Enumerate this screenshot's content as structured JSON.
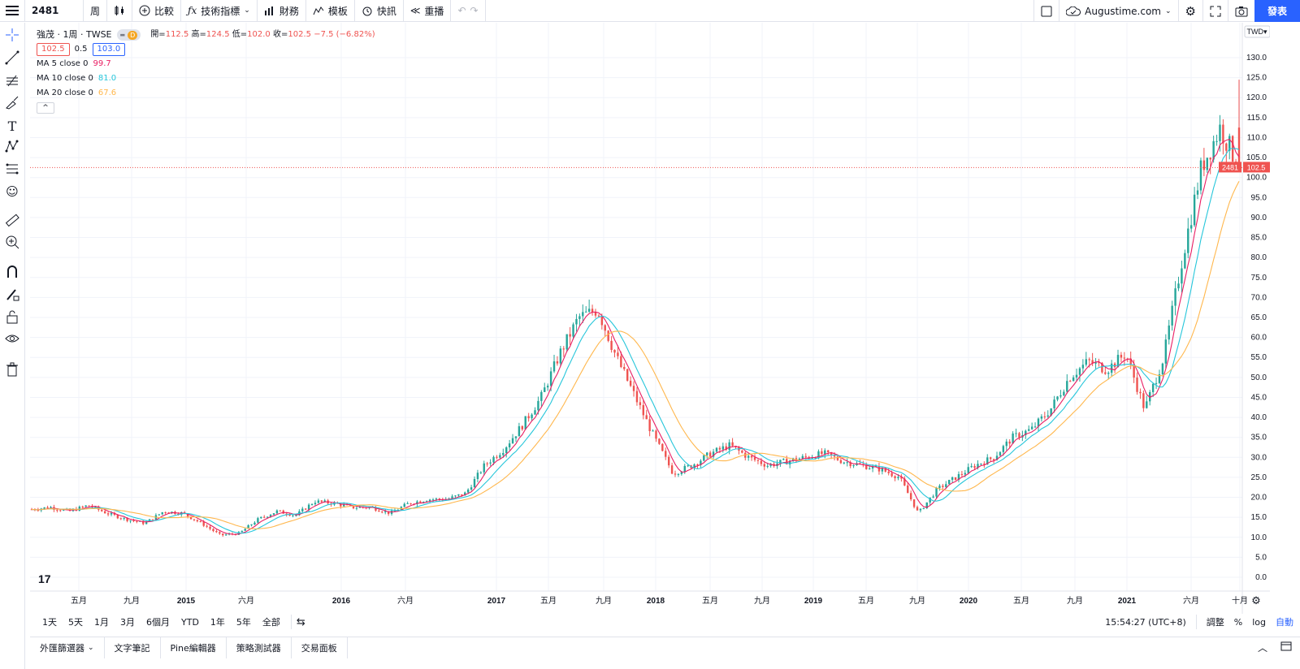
{
  "toolbar": {
    "symbol": "2481",
    "interval": "周",
    "compare_label": "比較",
    "indicators_label": "技術指標",
    "financials_label": "財務",
    "templates_label": "模板",
    "alert_label": "快訊",
    "replay_label": "重播",
    "account_label": "Augustime.com",
    "publish_label": "發表"
  },
  "legend": {
    "title": "強茂 · 1周 · TWSE",
    "badge_d": "D",
    "open_label": "開=",
    "open": "112.5",
    "high_label": "高=",
    "high": "124.5",
    "low_label": "低=",
    "low": "102.0",
    "close_label": "收=",
    "close": "102.5",
    "change": "−7.5 (−6.82%)",
    "bid": "102.5",
    "spread": "0.5",
    "ask": "103.0",
    "ma5_label": "MA 5 close 0",
    "ma5_value": "99.7",
    "ma10_label": "MA 10 close 0",
    "ma10_value": "81.0",
    "ma20_label": "MA 20 close 0",
    "ma20_value": "67.6",
    "collapse": "^"
  },
  "price_axis": {
    "currency": "TWD",
    "ticks": [
      "130.0",
      "125.0",
      "120.0",
      "115.0",
      "110.0",
      "105.0",
      "100.0",
      "95.0",
      "90.0",
      "85.0",
      "80.0",
      "75.0",
      "70.0",
      "65.0",
      "60.0",
      "55.0",
      "50.0",
      "45.0",
      "40.0",
      "35.0",
      "30.0",
      "25.0",
      "20.0",
      "15.0",
      "10.0",
      "5.0",
      "0.0"
    ],
    "last_symbol": "2481",
    "last_price": "102.5"
  },
  "time_axis": {
    "labels": [
      "五月",
      "九月",
      "2015",
      "六月",
      "2016",
      "六月",
      "2017",
      "五月",
      "九月",
      "2018",
      "五月",
      "九月",
      "2019",
      "五月",
      "九月",
      "2020",
      "五月",
      "九月",
      "2021",
      "六月",
      "十月"
    ]
  },
  "bottom": {
    "ranges": [
      "1天",
      "5天",
      "1月",
      "3月",
      "6個月",
      "YTD",
      "1年",
      "5年",
      "全部"
    ],
    "clock": "15:54:27 (UTC+8)",
    "adjust": "調整",
    "percent": "%",
    "log": "log",
    "auto": "自動"
  },
  "tabs": [
    "外匯篩選器",
    "文字筆記",
    "Pine編輯器",
    "策略測試器",
    "交易面板"
  ],
  "colors": {
    "up": "#26a69a",
    "down": "#ef5350",
    "ma5": "#e91e63",
    "ma10": "#26c6da",
    "ma20": "#ffb74d",
    "accent": "#2962ff"
  },
  "chart_data": {
    "type": "candlestick",
    "interval": "weekly",
    "ylim": [
      0,
      130
    ],
    "x_range": [
      "2014-01",
      "2021-10"
    ],
    "series": [
      {
        "name": "2481",
        "close": [
          17,
          17.5,
          16.5,
          18,
          16,
          14.5,
          13.5,
          16.5,
          16,
          13.5,
          10.5,
          11,
          14.5,
          16.5,
          15.5,
          19,
          18.5,
          17.5,
          17.5,
          16,
          18.5,
          19.5,
          19.5,
          21,
          28,
          32,
          38,
          45,
          56,
          65,
          67,
          55,
          45,
          35,
          26,
          28,
          31,
          33,
          30,
          28,
          29,
          30,
          31,
          29,
          28,
          27,
          25,
          16,
          22,
          25,
          28,
          30,
          35,
          37,
          42,
          50,
          54,
          52,
          56,
          42,
          55,
          80,
          102.5,
          112.5,
          102.5
        ]
      },
      {
        "name": "MA 5 close 0",
        "last": 99.7
      },
      {
        "name": "MA 10 close 0",
        "last": 81.0
      },
      {
        "name": "MA 20 close 0",
        "last": 67.6
      }
    ]
  }
}
